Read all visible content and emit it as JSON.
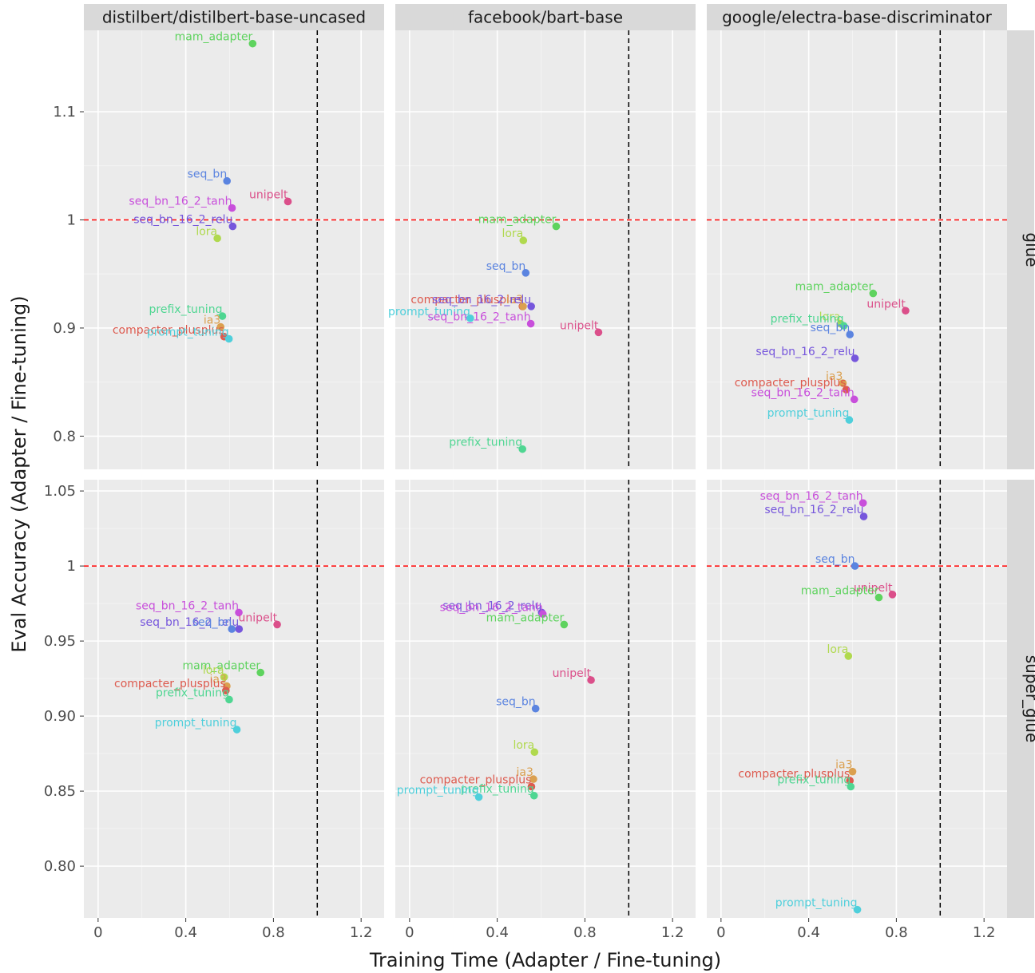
{
  "chart_data": {
    "type": "scatter",
    "xlabel": "Training Time (Adapter / Fine-tuning)",
    "ylabel": "Eval Accuracy (Adapter / Fine-tuning)",
    "x_ticks": [
      0,
      0.4,
      0.8,
      1.2
    ],
    "x_tick_labels": [
      "0",
      "0.4",
      "0.8",
      "1.2"
    ],
    "xlim": [
      -0.065,
      1.305
    ],
    "reference_lines": {
      "vertical_x": 1.0,
      "vertical_color": "#000000",
      "horizontal_y": 1.0,
      "horizontal_color": "#ff0000"
    },
    "grid": true,
    "series_colors": {
      "mam_adapter": "#5ed35e",
      "seq_bn": "#5b84e0",
      "seq_bn_16_2_tanh": "#c84fdb",
      "seq_bn_16_2_relu": "#7656dc",
      "unipelt": "#db4f8a",
      "lora": "#b0d94e",
      "prefix_tuning": "#4fd692",
      "ia3": "#dba04f",
      "compacter_plusplus": "#dd5a4e",
      "prompt_tuning": "#4fcfdb"
    },
    "columns": [
      "distilbert/distilbert-base-uncased",
      "facebook/bart-base",
      "google/electra-base-discriminator"
    ],
    "rows": [
      {
        "name": "glue",
        "ylim": [
          0.7693,
          1.1753
        ],
        "y_ticks": [
          0.8,
          0.9,
          1.0,
          1.1
        ],
        "y_tick_labels": [
          "0.8",
          "0.9",
          "1",
          "1.1"
        ]
      },
      {
        "name": "super_glue",
        "ylim": [
          0.7655,
          1.0575
        ],
        "y_ticks": [
          0.8,
          0.85,
          0.9,
          0.95,
          1.0,
          1.05
        ],
        "y_tick_labels": [
          "0.80",
          "0.85",
          "0.90",
          "0.95",
          "1",
          "1.05"
        ]
      }
    ],
    "panels": [
      {
        "row": 0,
        "col": 0,
        "points": [
          {
            "name": "mam_adapter",
            "x": 0.705,
            "y": 1.163
          },
          {
            "name": "seq_bn",
            "x": 0.588,
            "y": 1.036
          },
          {
            "name": "unipelt",
            "x": 0.866,
            "y": 1.017
          },
          {
            "name": "seq_bn_16_2_tanh",
            "x": 0.611,
            "y": 1.011
          },
          {
            "name": "seq_bn_16_2_relu",
            "x": 0.614,
            "y": 0.994
          },
          {
            "name": "lora",
            "x": 0.544,
            "y": 0.983
          },
          {
            "name": "prefix_tuning",
            "x": 0.567,
            "y": 0.911
          },
          {
            "name": "ia3",
            "x": 0.559,
            "y": 0.901
          },
          {
            "name": "compacter_plusplus",
            "x": 0.575,
            "y": 0.892
          },
          {
            "name": "prompt_tuning",
            "x": 0.597,
            "y": 0.89
          }
        ]
      },
      {
        "row": 0,
        "col": 1,
        "points": [
          {
            "name": "mam_adapter",
            "x": 0.669,
            "y": 0.994
          },
          {
            "name": "lora",
            "x": 0.519,
            "y": 0.981
          },
          {
            "name": "seq_bn",
            "x": 0.53,
            "y": 0.951
          },
          {
            "name": "compacter_plusplus",
            "x": 0.515,
            "y": 0.92
          },
          {
            "name": "ia3",
            "x": 0.518,
            "y": 0.92
          },
          {
            "name": "seq_bn_16_2_relu",
            "x": 0.555,
            "y": 0.92
          },
          {
            "name": "prompt_tuning",
            "x": 0.277,
            "y": 0.909
          },
          {
            "name": "seq_bn_16_2_tanh",
            "x": 0.553,
            "y": 0.904
          },
          {
            "name": "unipelt",
            "x": 0.862,
            "y": 0.896
          },
          {
            "name": "prefix_tuning",
            "x": 0.515,
            "y": 0.788
          }
        ]
      },
      {
        "row": 0,
        "col": 2,
        "points": [
          {
            "name": "mam_adapter",
            "x": 0.694,
            "y": 0.932
          },
          {
            "name": "unipelt",
            "x": 0.842,
            "y": 0.916
          },
          {
            "name": "lora",
            "x": 0.545,
            "y": 0.904
          },
          {
            "name": "prefix_tuning",
            "x": 0.56,
            "y": 0.902
          },
          {
            "name": "seq_bn",
            "x": 0.588,
            "y": 0.894
          },
          {
            "name": "seq_bn_16_2_relu",
            "x": 0.611,
            "y": 0.872
          },
          {
            "name": "ia3",
            "x": 0.556,
            "y": 0.849
          },
          {
            "name": "compacter_plusplus",
            "x": 0.571,
            "y": 0.843
          },
          {
            "name": "seq_bn_16_2_tanh",
            "x": 0.608,
            "y": 0.834
          },
          {
            "name": "prompt_tuning",
            "x": 0.585,
            "y": 0.815
          }
        ]
      },
      {
        "row": 1,
        "col": 0,
        "points": [
          {
            "name": "seq_bn_16_2_tanh",
            "x": 0.642,
            "y": 0.969
          },
          {
            "name": "unipelt",
            "x": 0.817,
            "y": 0.961
          },
          {
            "name": "seq_bn_16_2_relu",
            "x": 0.643,
            "y": 0.958
          },
          {
            "name": "seq_bn",
            "x": 0.61,
            "y": 0.958
          },
          {
            "name": "mam_adapter",
            "x": 0.741,
            "y": 0.929
          },
          {
            "name": "lora",
            "x": 0.575,
            "y": 0.926
          },
          {
            "name": "ia3",
            "x": 0.587,
            "y": 0.92
          },
          {
            "name": "compacter_plusplus",
            "x": 0.583,
            "y": 0.917
          },
          {
            "name": "prefix_tuning",
            "x": 0.598,
            "y": 0.911
          },
          {
            "name": "prompt_tuning",
            "x": 0.633,
            "y": 0.891
          }
        ]
      },
      {
        "row": 1,
        "col": 1,
        "points": [
          {
            "name": "seq_bn_16_2_relu",
            "x": 0.603,
            "y": 0.969
          },
          {
            "name": "seq_bn_16_2_tanh",
            "x": 0.608,
            "y": 0.968
          },
          {
            "name": "mam_adapter",
            "x": 0.705,
            "y": 0.961
          },
          {
            "name": "unipelt",
            "x": 0.828,
            "y": 0.924
          },
          {
            "name": "seq_bn",
            "x": 0.575,
            "y": 0.905
          },
          {
            "name": "lora",
            "x": 0.57,
            "y": 0.876
          },
          {
            "name": "ia3",
            "x": 0.565,
            "y": 0.858
          },
          {
            "name": "compacter_plusplus",
            "x": 0.556,
            "y": 0.853
          },
          {
            "name": "prefix_tuning",
            "x": 0.568,
            "y": 0.847
          },
          {
            "name": "prompt_tuning",
            "x": 0.316,
            "y": 0.846
          }
        ]
      },
      {
        "row": 1,
        "col": 2,
        "points": [
          {
            "name": "seq_bn_16_2_tanh",
            "x": 0.648,
            "y": 1.042
          },
          {
            "name": "seq_bn_16_2_relu",
            "x": 0.651,
            "y": 1.033
          },
          {
            "name": "seq_bn",
            "x": 0.611,
            "y": 1.0
          },
          {
            "name": "unipelt",
            "x": 0.782,
            "y": 0.981
          },
          {
            "name": "mam_adapter",
            "x": 0.72,
            "y": 0.979
          },
          {
            "name": "lora",
            "x": 0.581,
            "y": 0.94
          },
          {
            "name": "ia3",
            "x": 0.6,
            "y": 0.863
          },
          {
            "name": "compacter_plusplus",
            "x": 0.588,
            "y": 0.857
          },
          {
            "name": "prefix_tuning",
            "x": 0.592,
            "y": 0.853
          },
          {
            "name": "prompt_tuning",
            "x": 0.622,
            "y": 0.771
          }
        ]
      }
    ]
  }
}
